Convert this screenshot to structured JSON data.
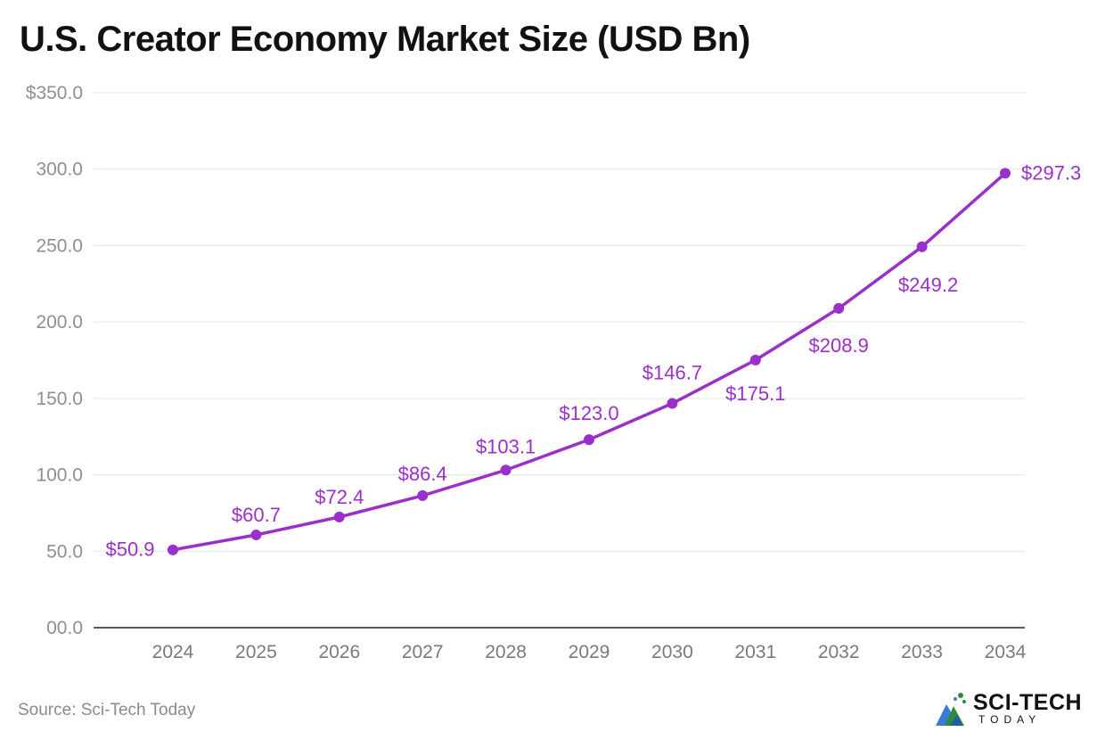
{
  "title": "U.S. Creator Economy Market Size (USD Bn)",
  "source": "Source: Sci-Tech Today",
  "logo": {
    "main": "SCI-TECH",
    "sub": "TODAY",
    "icon": "mountain-logo-icon"
  },
  "colors": {
    "series": "#9b2fc9",
    "grid": "#e3e3e3",
    "tick": "#8f8f8f",
    "axis": "#222222"
  },
  "chart_data": {
    "type": "line",
    "title": "U.S. Creator Economy Market Size (USD Bn)",
    "xlabel": "",
    "ylabel": "",
    "x": [
      "2024",
      "2025",
      "2026",
      "2027",
      "2028",
      "2029",
      "2030",
      "2031",
      "2032",
      "2033",
      "2034"
    ],
    "series": [
      {
        "values": [
          50.9,
          60.7,
          72.4,
          86.4,
          103.1,
          123.0,
          146.7,
          175.1,
          208.9,
          249.2,
          297.3
        ],
        "labels": [
          "$50.9",
          "$60.7",
          "$72.4",
          "$86.4",
          "$103.1",
          "$123.0",
          "$146.7",
          "$175.1",
          "$208.9",
          "$249.2",
          "$297.3"
        ]
      }
    ],
    "yticks": [
      0,
      50,
      100,
      150,
      200,
      250,
      300,
      350
    ],
    "ytick_labels": [
      "00.0",
      "50.0",
      "100.0",
      "150.0",
      "200.0",
      "250.0",
      "300.0",
      "$350.0"
    ],
    "ylim": [
      0,
      350
    ],
    "grid": true,
    "legend": "none"
  }
}
